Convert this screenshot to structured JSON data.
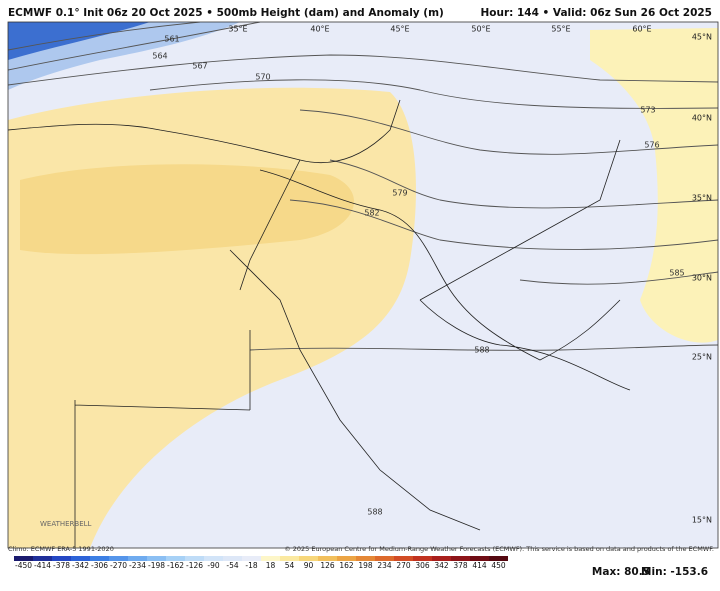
{
  "header": {
    "title": "ECMWF 0.1° Init 06z 20 Oct 2025 • 500mb Height (dam) and Anomaly (m)",
    "valid": "Hour: 144 • Valid: 06z Sun 26 Oct 2025"
  },
  "map": {
    "longitude_labels": [
      "35°E",
      "40°E",
      "45°E",
      "50°E",
      "55°E",
      "60°E"
    ],
    "latitude_labels": [
      "45°N",
      "40°N",
      "35°N",
      "30°N",
      "25°N",
      "15°N"
    ],
    "contour_labels": [
      "561",
      "564",
      "567",
      "570",
      "573",
      "576",
      "579",
      "582",
      "585",
      "588",
      "588"
    ],
    "logo": "WEATHERBELL"
  },
  "footer": {
    "climo": "Climo: ECMWF ERA-5 1991-2020",
    "copyright": "© 2025 European Centre for Medium-Range Weather Forecasts (ECMWF). This service is based on data and products of the ECMWF.",
    "colorbar": [
      "-450",
      "-414",
      "-378",
      "-342",
      "-306",
      "-270",
      "-234",
      "-198",
      "-162",
      "-126",
      "-90",
      "-54",
      "-18",
      "18",
      "54",
      "90",
      "126",
      "162",
      "198",
      "234",
      "270",
      "306",
      "342",
      "378",
      "414",
      "450"
    ],
    "max": "Max: 80.5",
    "min": "Min: -153.6"
  }
}
